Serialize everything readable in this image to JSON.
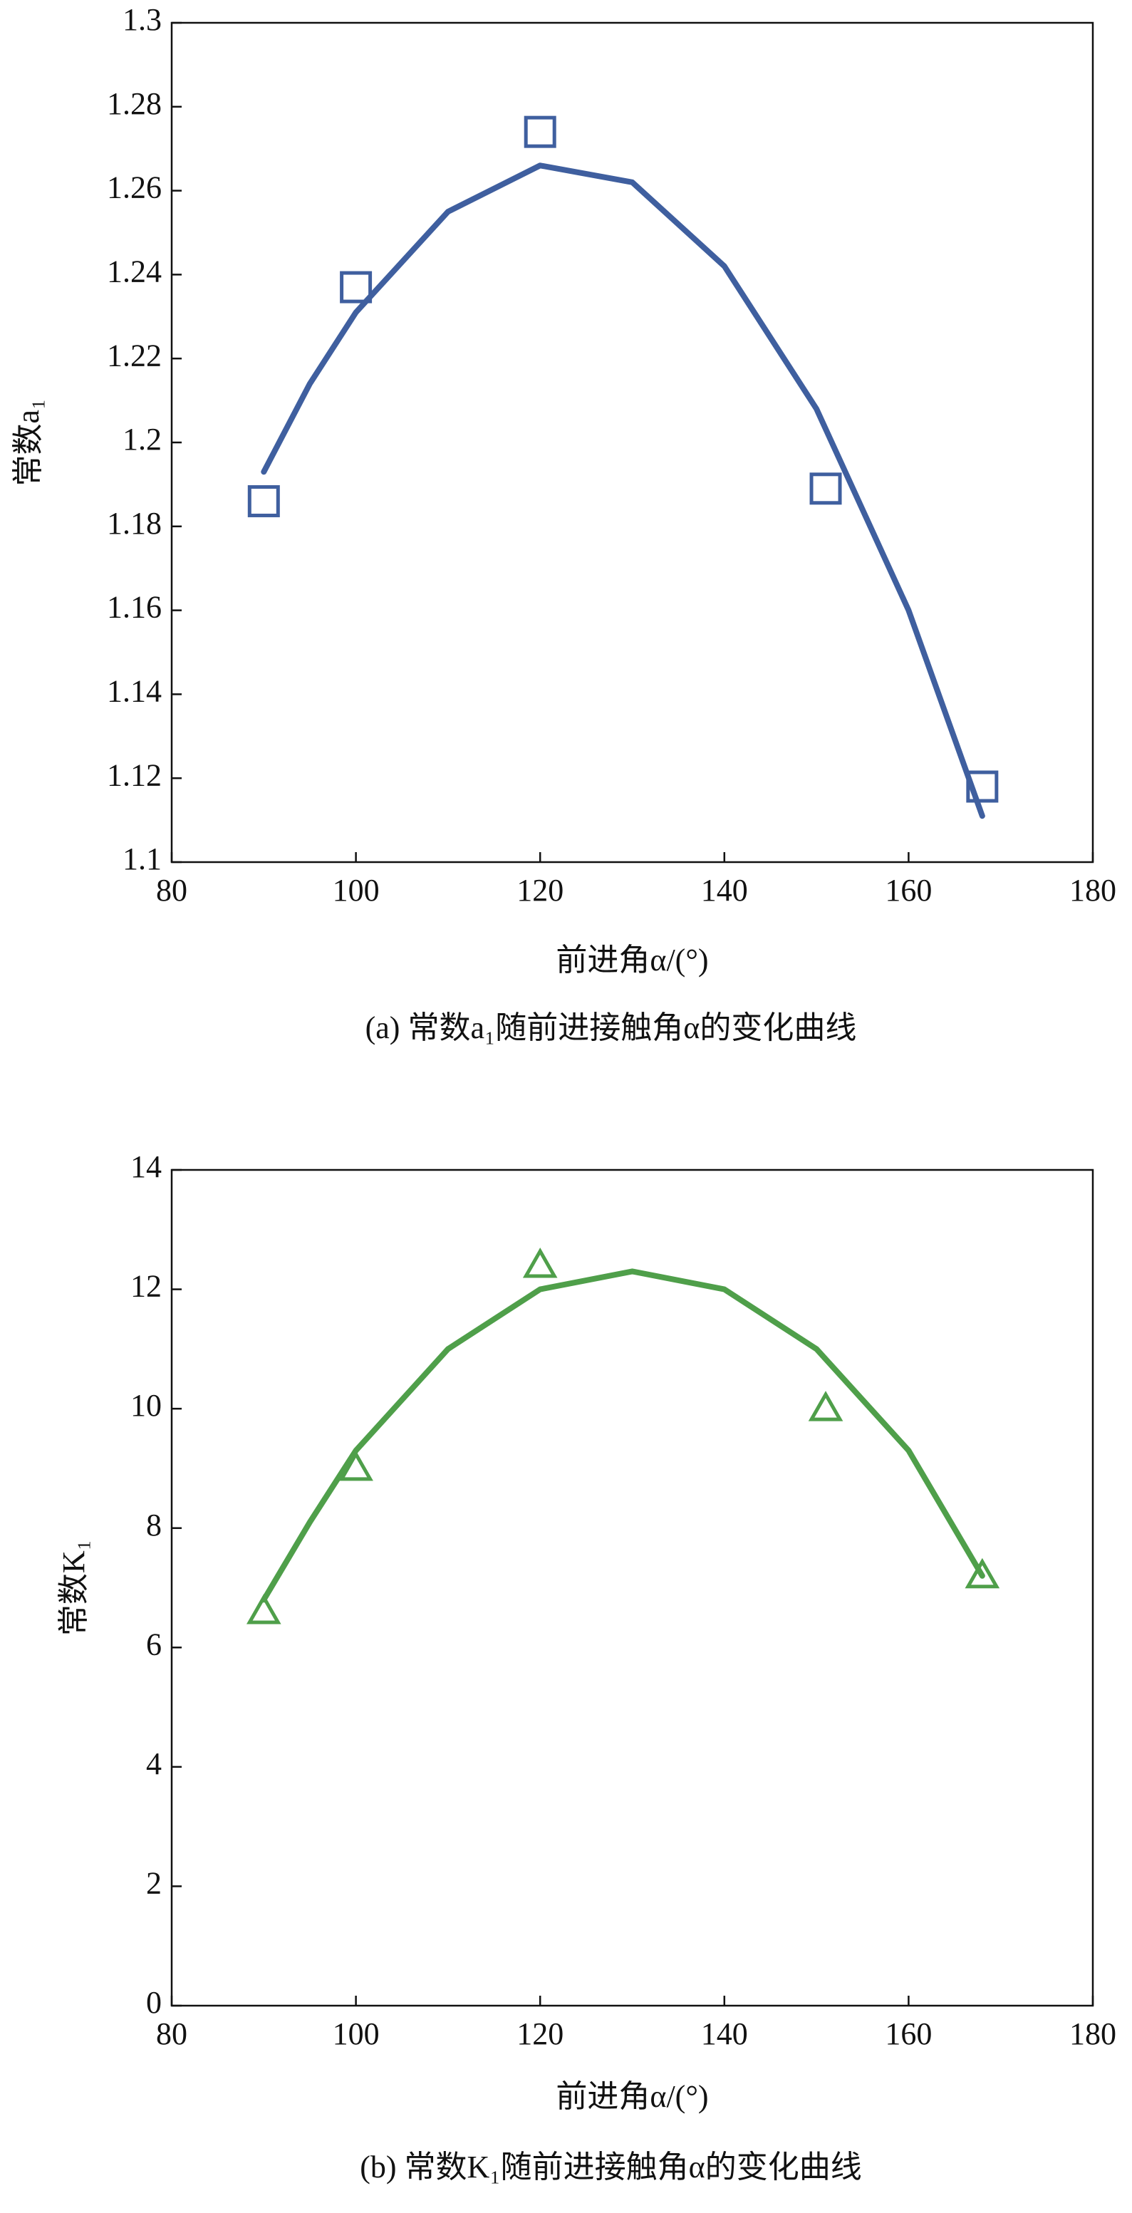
{
  "chart_data": [
    {
      "type": "scatter",
      "x_label": "前进角α/(°)",
      "y_label": "常数a₁",
      "caption": "(a) 常数a₁随前进接触角α的变化曲线",
      "xlim": [
        80,
        180
      ],
      "xticks": [
        80,
        100,
        120,
        140,
        160,
        180
      ],
      "ylim": [
        1.1,
        1.3
      ],
      "yticks": [
        1.1,
        1.12,
        1.14,
        1.16,
        1.18,
        1.2,
        1.22,
        1.24,
        1.26,
        1.28,
        1.3
      ],
      "series": [
        {
          "type": "scatter",
          "marker": "square",
          "color": "#3f5f9f",
          "x": [
            90,
            100,
            120,
            151,
            168
          ],
          "values": [
            1.186,
            1.237,
            1.274,
            1.189,
            1.118
          ]
        },
        {
          "type": "line",
          "color": "#3f5f9f",
          "x": [
            90,
            95,
            100,
            110,
            120,
            130,
            140,
            150,
            160,
            168
          ],
          "values": [
            1.193,
            1.214,
            1.231,
            1.255,
            1.266,
            1.262,
            1.242,
            1.208,
            1.16,
            1.111
          ]
        }
      ]
    },
    {
      "type": "scatter",
      "x_label": "前进角α/(°)",
      "y_label": "常数K₁",
      "caption": "(b) 常数K₁随前进接触角α的变化曲线",
      "xlim": [
        80,
        180
      ],
      "xticks": [
        80,
        100,
        120,
        140,
        160,
        180
      ],
      "ylim": [
        0,
        14
      ],
      "yticks": [
        0,
        2,
        4,
        6,
        8,
        10,
        12,
        14
      ],
      "series": [
        {
          "type": "scatter",
          "marker": "triangle",
          "color": "#4f9f4a",
          "x": [
            90,
            100,
            120,
            151,
            168
          ],
          "values": [
            6.6,
            9.0,
            12.4,
            10.0,
            7.2
          ]
        },
        {
          "type": "line",
          "color": "#4f9f4a",
          "x": [
            90,
            95,
            100,
            110,
            120,
            130,
            140,
            150,
            160,
            168
          ],
          "values": [
            6.8,
            8.1,
            9.3,
            11.0,
            12.0,
            12.3,
            12.0,
            11.0,
            9.3,
            7.2
          ]
        }
      ]
    }
  ]
}
